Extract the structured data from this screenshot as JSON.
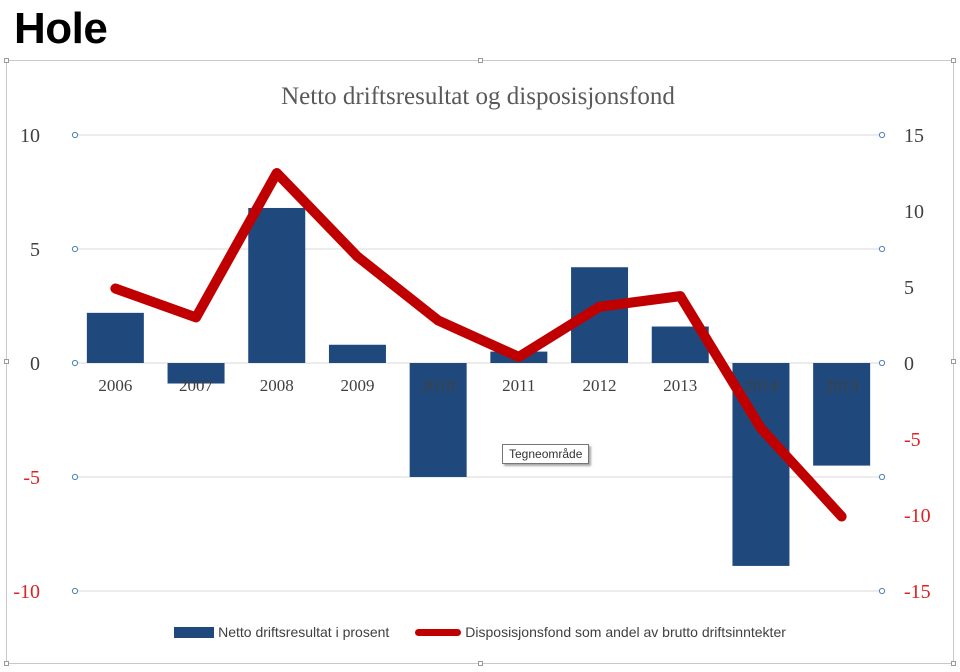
{
  "page_heading": "Hole",
  "tooltip": "Tegneområde",
  "colors": {
    "bar": "#1f497d",
    "line": "#c00000",
    "grid": "#d9d9d9",
    "axis_text": "#404040",
    "neg_text": "#e02020",
    "marker": "#4f81bd"
  },
  "chart_data": {
    "type": "bar",
    "title": "Netto driftsresultat og disposisjonsfond",
    "categories": [
      "2006",
      "2007",
      "2008",
      "2009",
      "2010",
      "2011",
      "2012",
      "2013",
      "2014",
      "2015"
    ],
    "series": [
      {
        "name": "Netto driftsresultat i prosent",
        "type": "bar",
        "axis": "left",
        "values": [
          2.2,
          -0.9,
          6.8,
          0.8,
          -5.0,
          0.5,
          4.2,
          1.6,
          -8.9,
          -4.5
        ]
      },
      {
        "name": "Disposisjonsfond som andel av brutto driftsinntekter",
        "type": "line",
        "axis": "right",
        "values": [
          4.9,
          3.0,
          12.5,
          7.0,
          2.8,
          0.4,
          3.7,
          4.4,
          -4.3,
          -10.1
        ]
      }
    ],
    "y_left": {
      "min": -10,
      "max": 10,
      "ticks": [
        10,
        5,
        0,
        -5,
        -10
      ],
      "tick_labels": [
        "10",
        "5",
        "0",
        "-5",
        "-10"
      ]
    },
    "y_right": {
      "min": -15,
      "max": 15,
      "ticks": [
        15,
        10,
        5,
        0,
        -5,
        -10,
        -15
      ],
      "tick_labels": [
        "15",
        "10",
        "5",
        "0",
        "-5",
        "-10",
        "-15"
      ]
    },
    "grid": true,
    "legend_position": "bottom"
  }
}
